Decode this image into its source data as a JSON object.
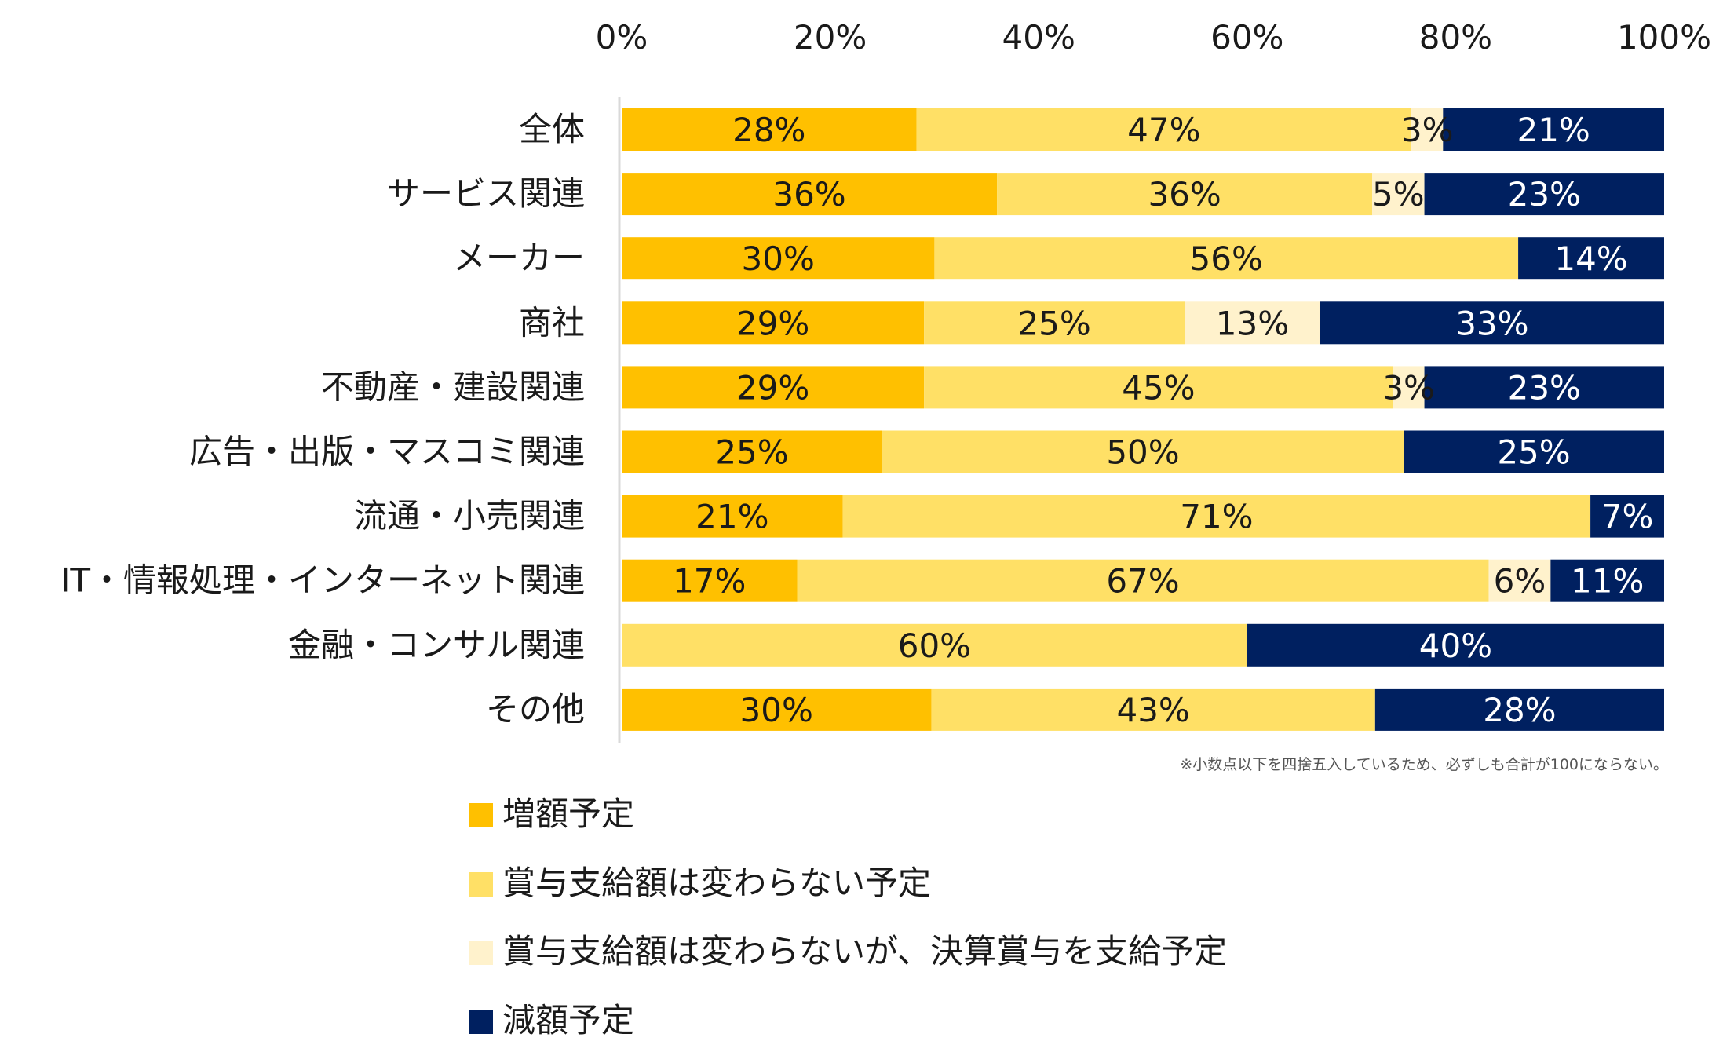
{
  "chart_data": {
    "type": "bar",
    "orientation": "horizontal",
    "stacked": "percent",
    "title": "",
    "xlabel": "",
    "ylabel": "",
    "xlim": [
      0,
      100
    ],
    "x_ticks": [
      "0%",
      "20%",
      "40%",
      "60%",
      "80%",
      "100%"
    ],
    "grid": false,
    "legend_position": "bottom-left",
    "categories": [
      "全体",
      "サービス関連",
      "メーカー",
      "商社",
      "不動産・建設関連",
      "広告・出版・マスコミ関連",
      "流通・小売関連",
      "IT・情報処理・インターネット関連",
      "金融・コンサル関連",
      "その他"
    ],
    "series": [
      {
        "name": "増額予定",
        "color": "#FFC000",
        "label_color": "#1a1a1a",
        "values": [
          28,
          36,
          30,
          29,
          29,
          25,
          21,
          17,
          0,
          30
        ]
      },
      {
        "name": "賞与支給額は変わらない予定",
        "color": "#FFE066",
        "label_color": "#1a1a1a",
        "values": [
          47,
          36,
          56,
          25,
          45,
          50,
          71,
          67,
          60,
          43
        ]
      },
      {
        "name": "賞与支給額は変わらないが、決算賞与を支給予定",
        "color": "#FFF2CC",
        "label_color": "#1a1a1a",
        "values": [
          3,
          5,
          0,
          13,
          3,
          0,
          0,
          6,
          0,
          0
        ]
      },
      {
        "name": "減額予定",
        "color": "#002060",
        "label_color": "#ffffff",
        "values": [
          21,
          23,
          14,
          33,
          23,
          25,
          7,
          11,
          40,
          28
        ]
      }
    ],
    "value_suffix": "%",
    "annotations": [
      "※小数点以下を四捨五入しているため、必ずしも合計が100にならない。"
    ]
  }
}
